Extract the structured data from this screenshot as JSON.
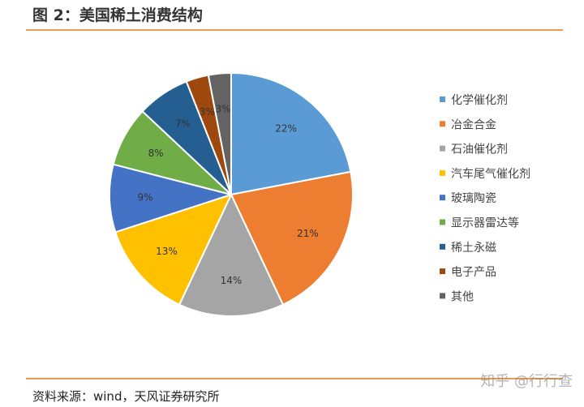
{
  "figure": {
    "title": "图 2：美国稀土消费结构",
    "source": "资料来源：wind，天风证券研究所",
    "watermark": "知乎 @行行查"
  },
  "chart_data": {
    "type": "pie",
    "categories": [
      "化学催化剂",
      "冶金合金",
      "石油催化剂",
      "汽车尾气催化剂",
      "玻璃陶瓷",
      "显示器雷达等",
      "稀土永磁",
      "电子产品",
      "其他"
    ],
    "values": [
      22,
      21,
      14,
      13,
      9,
      8,
      7,
      3,
      3
    ],
    "labels": [
      "22%",
      "21%",
      "14%",
      "13%",
      "9%",
      "8%",
      "7%",
      "3%",
      "3%"
    ],
    "colors": [
      "#5B9BD5",
      "#ED7D31",
      "#A5A5A5",
      "#FFC000",
      "#4472C4",
      "#70AD47",
      "#255E91",
      "#9E480E",
      "#636363"
    ],
    "legend_position": "right",
    "start_angle": "12 o'clock",
    "direction": "clockwise"
  }
}
